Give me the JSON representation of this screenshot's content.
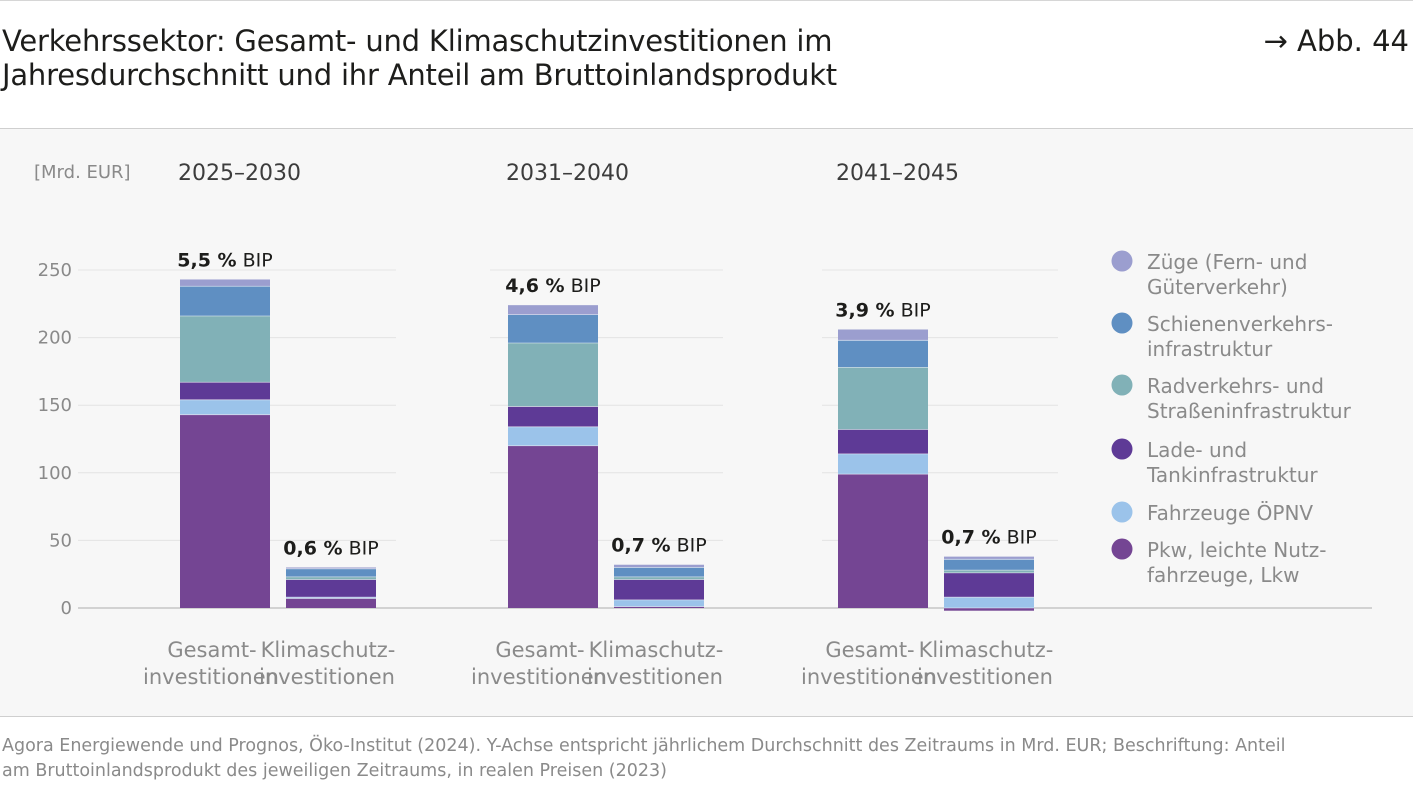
{
  "figure": {
    "title_line1": "Verkehrssektor: Gesamt- und Klimaschutzinvestitionen im",
    "title_line2": "Jahresdurchschnitt und ihr Anteil am Bruttoinlandsprodukt",
    "ref": "→ Abb. 44",
    "source_line1": "Agora Energiewende und Prognos, Öko-Institut (2024). Y-Achse entspricht jährlichem Durchschnitt des Zeitraums in Mrd. EUR; Beschriftung: Anteil",
    "source_line2": "am Bruttoinlandsprodukt des jeweiligen Zeitraums, in realen Preisen (2023)"
  },
  "chart_data": {
    "type": "bar",
    "stacked": true,
    "unit_label": "[Mrd. EUR]",
    "ylim": [
      0,
      250
    ],
    "yticks": [
      0,
      50,
      100,
      150,
      200,
      250
    ],
    "grid": true,
    "legend_position": "right",
    "groups": [
      "2025–2030",
      "2031–2040",
      "2041–2045"
    ],
    "bar_labels": [
      [
        "Gesamt-",
        "investitionen"
      ],
      [
        "Klimaschutz-",
        "investitionen"
      ]
    ],
    "bip_suffix": "BIP",
    "bars": [
      {
        "group": 0,
        "kind": 0,
        "bip": "5,5 %"
      },
      {
        "group": 0,
        "kind": 1,
        "bip": "0,6 %"
      },
      {
        "group": 1,
        "kind": 0,
        "bip": "4,6 %"
      },
      {
        "group": 1,
        "kind": 1,
        "bip": "0,7 %"
      },
      {
        "group": 2,
        "kind": 0,
        "bip": "3,9 %"
      },
      {
        "group": 2,
        "kind": 1,
        "bip": "0,7 %"
      }
    ],
    "series": [
      {
        "name": "Pkw, leichte Nutz-fahrzeuge, Lkw",
        "legend_lines": [
          "Pkw, leichte Nutz-",
          "fahrzeuge, Lkw"
        ],
        "color": "#744593",
        "values": [
          143,
          7,
          120,
          1,
          99,
          -2
        ]
      },
      {
        "name": "Fahrzeuge ÖPNV",
        "legend_lines": [
          "Fahrzeuge ÖPNV"
        ],
        "color": "#9bc3ea",
        "values": [
          11,
          1,
          14,
          5,
          15,
          8
        ]
      },
      {
        "name": "Lade- und Tankinfrastruktur",
        "legend_lines": [
          "Lade- und",
          "Tankinfrastruktur"
        ],
        "color": "#5e3a96",
        "values": [
          13,
          13,
          15,
          15,
          18,
          18
        ]
      },
      {
        "name": "Radverkehrs- und Straßeninfrastruktur",
        "legend_lines": [
          "Radverkehrs- und",
          "Straßeninfrastruktur"
        ],
        "color": "#81b1b7",
        "values": [
          49,
          2,
          47,
          2,
          46,
          2
        ]
      },
      {
        "name": "Schienenverkehrs-infrastruktur",
        "legend_lines": [
          "Schienenverkehrs-",
          "infrastruktur"
        ],
        "color": "#5f8fc2",
        "values": [
          22,
          6,
          21,
          7,
          20,
          8
        ]
      },
      {
        "name": "Züge (Fern- und Güterverkehr)",
        "legend_lines": [
          "Züge (Fern- und",
          "Güterverkehr)"
        ],
        "color": "#9b9ecf",
        "values": [
          5,
          1,
          7,
          2,
          8,
          2
        ]
      }
    ]
  }
}
